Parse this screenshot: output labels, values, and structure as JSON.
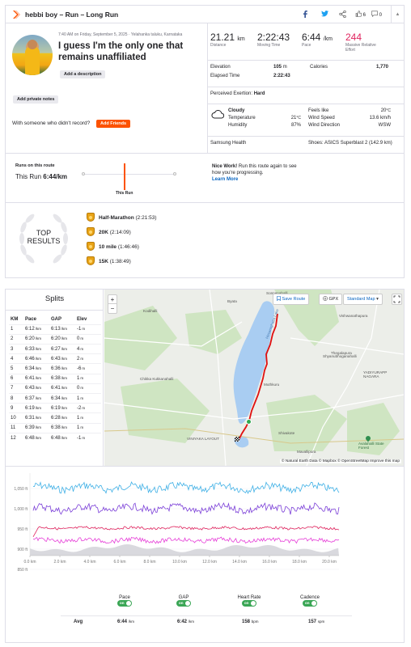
{
  "header": {
    "title": "hebbi boy – Run – Long Run",
    "kudos_count": "6",
    "comments_count": "0"
  },
  "activity": {
    "datetime_location": "7:40 AM on Friday, September 5, 2025 · Yelahanka taluku, Karnataka",
    "name": "I guess I'm the only one that remains unaffiliated",
    "add_description": "Add a description",
    "add_private_notes": "Add private notes",
    "with_someone_question": "With someone who didn't record?",
    "add_friends": "Add Friends"
  },
  "stats": {
    "distance_value": "21.21",
    "distance_unit": "km",
    "distance_label": "Distance",
    "moving_time_value": "2:22:43",
    "moving_time_label": "Moving Time",
    "pace_value": "6:44",
    "pace_unit": "/km",
    "pace_label": "Pace",
    "effort_value": "244",
    "effort_label": "Massive Relative Effort",
    "elevation_label": "Elevation",
    "elevation_value": "105",
    "elevation_unit": "m",
    "calories_label": "Calories",
    "calories_value": "1,770",
    "elapsed_label": "Elapsed Time",
    "elapsed_value": "2:22:43",
    "perceived_label": "Perceived Exertion:",
    "perceived_value": "Hard",
    "weather_label": "Cloudy",
    "temp_label": "Temperature",
    "temp_value": "21",
    "temp_unit": "°C",
    "humidity_label": "Humidity",
    "humidity_value": "87%",
    "feels_label": "Feels like",
    "feels_value": "20",
    "feels_unit": "°C",
    "wind_speed_label": "Wind Speed",
    "wind_speed_value": "13.6 km/h",
    "wind_dir_label": "Wind Direction",
    "wind_dir_value": "WSW",
    "device": "Samsung Health",
    "shoes": "Shoes: ASICS Superblast 2 (142.9 km)"
  },
  "route": {
    "runs_on_route_label": "Runs on this route",
    "this_run_label": "This Run",
    "this_run_pace": "6:44/km",
    "marker_label": "This Run",
    "nice_work_bold": "Nice Work!",
    "nice_work_text": " Run this route again to see how you're progressing.",
    "learn_more": "Learn More"
  },
  "top_results": {
    "title_line1": "TOP",
    "title_line2": "RESULTS",
    "items": [
      {
        "name": "Half-Marathon",
        "time": "(2:21:53)"
      },
      {
        "name": "20K",
        "time": "(2:14:09)"
      },
      {
        "name": "10 mile",
        "time": "(1:46:46)"
      },
      {
        "name": "15K",
        "time": "(1:38:49)"
      }
    ]
  },
  "splits": {
    "title": "Splits",
    "headers": [
      "KM",
      "Pace",
      "GAP",
      "Elev"
    ],
    "rows": [
      [
        "1",
        "6:12",
        "6:13",
        "-1"
      ],
      [
        "2",
        "6:20",
        "6:20",
        "0"
      ],
      [
        "3",
        "6:33",
        "6:27",
        "4"
      ],
      [
        "4",
        "6:46",
        "6:43",
        "2"
      ],
      [
        "5",
        "6:34",
        "6:36",
        "-6"
      ],
      [
        "6",
        "6:41",
        "6:38",
        "1"
      ],
      [
        "7",
        "6:43",
        "6:41",
        "0"
      ],
      [
        "8",
        "6:37",
        "6:34",
        "1"
      ],
      [
        "9",
        "6:19",
        "6:19",
        "-2"
      ],
      [
        "10",
        "6:31",
        "6:28",
        "1"
      ],
      [
        "11",
        "6:39",
        "6:38",
        "1"
      ],
      [
        "12",
        "6:48",
        "6:48",
        "-1"
      ]
    ],
    "pace_unit": "/km",
    "elev_unit": "m"
  },
  "map": {
    "save_route": "Save Route",
    "gpx": "GPX",
    "map_style": "Standard Map",
    "zoom_in": "+",
    "zoom_out": "−",
    "attribution": "© Natural Earth Data © Mapbox © OpenStreetMap Improve this map",
    "places": [
      "Sonnenahalli",
      "Byata",
      "Kodihalli",
      "Vishwanathapura",
      "Shyanubhoganahalli",
      "Thegalapura",
      "Muthkuru",
      "Chikka Kukkanahalli",
      "YADIYURAPP NAGARA",
      "Shivakote",
      "VINIYAKA LAYOUT",
      "Mavallipura",
      "Avalahalli State Forest",
      "Hesaraghatta Lake"
    ]
  },
  "chart": {
    "y_ticks": [
      "1,050 ft",
      "1,000 ft",
      "950 ft",
      "900 ft",
      "850 ft"
    ],
    "x_ticks": [
      "0.0 km",
      "2.0 km",
      "4.0 km",
      "6.0 km",
      "8.0 km",
      "10.0 km",
      "12.0 km",
      "14.0 km",
      "16.0 km",
      "18.0 km",
      "20.0 km"
    ],
    "legend": [
      {
        "label": "Pace",
        "toggle": "on",
        "avg": "6:44",
        "unit": "/km"
      },
      {
        "label": "GAP",
        "toggle": "on",
        "avg": "6:42",
        "unit": "/km"
      },
      {
        "label": "Heart Rate",
        "toggle": "on",
        "avg": "158",
        "unit": "bpm"
      },
      {
        "label": "Cadence",
        "toggle": "on",
        "avg": "157",
        "unit": "spm"
      }
    ],
    "avg_label": "Avg",
    "colors": {
      "pace": "#3fb0e6",
      "gap": "#7b3fd8",
      "hr": "#e0245e",
      "cadence": "#e63fd8",
      "elev": "#d9d9de"
    }
  }
}
